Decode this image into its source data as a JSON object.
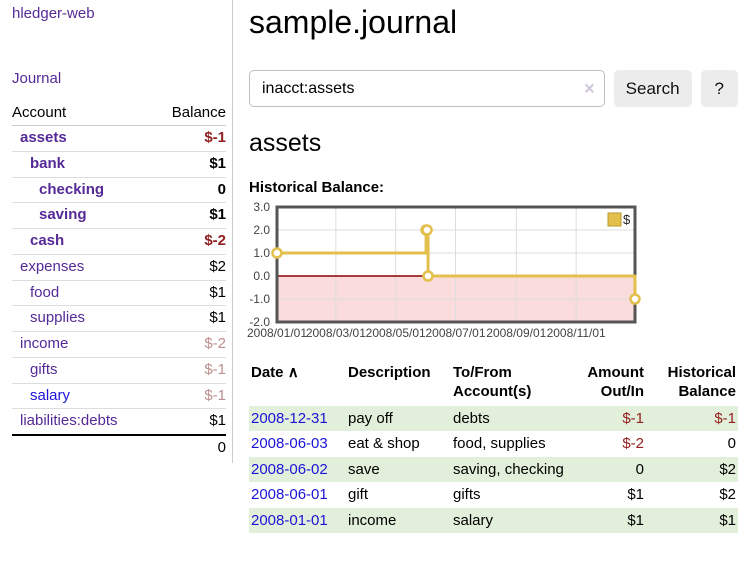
{
  "sidebar": {
    "app_title": "hledger-web",
    "journal_label": "Journal",
    "accounts_table": {
      "headers": {
        "account": "Account",
        "balance": "Balance"
      },
      "rows": [
        {
          "name": "assets",
          "balance": "$-1",
          "depth": 1,
          "bold": true,
          "name_color": "purple",
          "balance_color": "neg"
        },
        {
          "name": "bank",
          "balance": "$1",
          "depth": 2,
          "bold": true,
          "name_color": "purple",
          "balance_color": "normal"
        },
        {
          "name": "checking",
          "balance": "0",
          "depth": 3,
          "bold": true,
          "name_color": "purple",
          "balance_color": "normal"
        },
        {
          "name": "saving",
          "balance": "$1",
          "depth": 3,
          "bold": true,
          "name_color": "purple",
          "balance_color": "normal"
        },
        {
          "name": "cash",
          "balance": "$-2",
          "depth": 2,
          "bold": true,
          "name_color": "purple",
          "balance_color": "neg"
        },
        {
          "name": "expenses",
          "balance": "$2",
          "depth": 1,
          "bold": false,
          "name_color": "purple",
          "balance_color": "normal"
        },
        {
          "name": "food",
          "balance": "$1",
          "depth": 2,
          "bold": false,
          "name_color": "purple",
          "balance_color": "normal"
        },
        {
          "name": "supplies",
          "balance": "$1",
          "depth": 2,
          "bold": false,
          "name_color": "purple",
          "balance_color": "normal"
        },
        {
          "name": "income",
          "balance": "$-2",
          "depth": 1,
          "bold": false,
          "name_color": "purple",
          "balance_color": "muted"
        },
        {
          "name": "gifts",
          "balance": "$-1",
          "depth": 2,
          "bold": false,
          "name_color": "purple",
          "balance_color": "muted"
        },
        {
          "name": "salary",
          "balance": "$-1",
          "depth": 2,
          "bold": false,
          "name_color": "blue",
          "balance_color": "muted"
        },
        {
          "name": "liabilities:debts",
          "balance": "$1",
          "depth": 1,
          "bold": false,
          "name_color": "purple",
          "balance_color": "normal"
        }
      ],
      "total": "0"
    }
  },
  "main": {
    "title": "sample.journal",
    "search": {
      "value": "inacct:assets",
      "clear_icon": "×",
      "button_label": "Search",
      "help_label": "?"
    },
    "account_heading": "assets",
    "chart_heading": "Historical Balance:"
  },
  "chart_data": {
    "type": "line",
    "style": "step",
    "title": "Historical Balance:",
    "x_range": [
      "2008-01-01",
      "2008-12-31"
    ],
    "ylim": [
      -2,
      3
    ],
    "y_ticks": [
      3.0,
      2.0,
      1.0,
      0.0,
      -1.0,
      -2.0
    ],
    "x_ticks": [
      {
        "date": "2008-01-01",
        "label": "2008/01/01"
      },
      {
        "date": "2008-03-01",
        "label": "2008/03/01"
      },
      {
        "date": "2008-05-01",
        "label": "2008/05/01"
      },
      {
        "date": "2008-07-01",
        "label": "2008/07/01"
      },
      {
        "date": "2008-09-01",
        "label": "2008/09/01"
      },
      {
        "date": "2008-11-01",
        "label": "2008/11/01"
      }
    ],
    "series": [
      {
        "name": "$",
        "points": [
          {
            "x": "2008-01-01",
            "y": 1
          },
          {
            "x": "2008-06-01",
            "y": 2
          },
          {
            "x": "2008-06-02",
            "y": 2
          },
          {
            "x": "2008-06-03",
            "y": 0
          },
          {
            "x": "2008-12-31",
            "y": -1
          }
        ]
      }
    ],
    "legend_position": "top-right",
    "grid": true,
    "colors": {
      "line": "#e3bf4b",
      "marker_fill": "#ffffff",
      "negative_region": "#fbdcdc",
      "zero_line": "#8b0000",
      "grid": "#dddddd",
      "border": "#555555",
      "legend_border": "#b99b2e"
    }
  },
  "register": {
    "headers": {
      "date": "Date",
      "sort_indicator": "∧",
      "description": "Description",
      "accounts": "To/From Account(s)",
      "amount": "Amount Out/In",
      "balance": "Historical Balance"
    },
    "rows": [
      {
        "date": "2008-12-31",
        "description": "pay off",
        "accounts": "debts",
        "amount": "$-1",
        "amount_color": "neg",
        "balance": "$-1",
        "balance_color": "neg",
        "striped": true
      },
      {
        "date": "2008-06-03",
        "description": "eat & shop",
        "accounts": "food, supplies",
        "amount": "$-2",
        "amount_color": "neg",
        "balance": "0",
        "balance_color": "normal",
        "striped": false
      },
      {
        "date": "2008-06-02",
        "description": "save",
        "accounts": "saving, checking",
        "amount": "0",
        "amount_color": "normal",
        "balance": "$2",
        "balance_color": "normal",
        "striped": true
      },
      {
        "date": "2008-06-01",
        "description": "gift",
        "accounts": "gifts",
        "amount": "$1",
        "amount_color": "normal",
        "balance": "$2",
        "balance_color": "normal",
        "striped": false
      },
      {
        "date": "2008-01-01",
        "description": "income",
        "accounts": "salary",
        "amount": "$1",
        "amount_color": "normal",
        "balance": "$1",
        "balance_color": "normal",
        "striped": true
      }
    ]
  }
}
